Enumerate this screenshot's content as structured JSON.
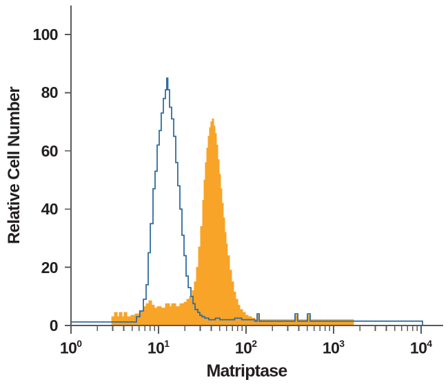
{
  "chart_data": {
    "type": "area",
    "subtype": "flow-cytometry-histogram-overlay",
    "title": "",
    "xlabel": "Matriptase",
    "ylabel": "Relative Cell Number",
    "x_axis": {
      "scale": "log10",
      "tick_base": 10,
      "tick_exponents": [
        0,
        1,
        2,
        3,
        4
      ],
      "minor_tick_multiples": [
        2,
        3,
        4,
        5,
        6,
        7,
        8,
        9
      ],
      "range_log10": [
        0,
        4.25
      ]
    },
    "y_axis": {
      "ticks": [
        0,
        20,
        40,
        60,
        80,
        100
      ],
      "range": [
        0,
        110
      ]
    },
    "grid": false,
    "legend": "none",
    "colors": {
      "filled_series": "#F7A428",
      "open_series": "#2F6C9F",
      "axis": "#58595B",
      "text": "#231F20",
      "background": "#FFFFFF"
    },
    "series": [
      {
        "name": "filled-orange-histogram",
        "style": "filled",
        "color": "#F7A428",
        "peak": {
          "x": 41,
          "height": 71
        },
        "points_log10x_height": [
          [
            0.465,
            3
          ],
          [
            0.496,
            4.5
          ],
          [
            0.528,
            3
          ],
          [
            0.551,
            4.5
          ],
          [
            0.583,
            3
          ],
          [
            0.606,
            4.5
          ],
          [
            0.638,
            3
          ],
          [
            0.685,
            3.5
          ],
          [
            0.732,
            4
          ],
          [
            0.78,
            5
          ],
          [
            0.827,
            6.5
          ],
          [
            0.858,
            7.5
          ],
          [
            0.89,
            8.5
          ],
          [
            0.921,
            7
          ],
          [
            0.953,
            6
          ],
          [
            0.984,
            6.5
          ],
          [
            1.031,
            6
          ],
          [
            1.079,
            7.5
          ],
          [
            1.126,
            6.5
          ],
          [
            1.15,
            7.5
          ],
          [
            1.197,
            6.5
          ],
          [
            1.244,
            7.5
          ],
          [
            1.291,
            8
          ],
          [
            1.323,
            9
          ],
          [
            1.354,
            10
          ],
          [
            1.386,
            12
          ],
          [
            1.409,
            15
          ],
          [
            1.433,
            20
          ],
          [
            1.457,
            27
          ],
          [
            1.48,
            34
          ],
          [
            1.504,
            43
          ],
          [
            1.52,
            50
          ],
          [
            1.535,
            56
          ],
          [
            1.551,
            61
          ],
          [
            1.567,
            65
          ],
          [
            1.583,
            68
          ],
          [
            1.598,
            70
          ],
          [
            1.614,
            71
          ],
          [
            1.63,
            68.5
          ],
          [
            1.646,
            66
          ],
          [
            1.661,
            62
          ],
          [
            1.677,
            57
          ],
          [
            1.693,
            52
          ],
          [
            1.709,
            47
          ],
          [
            1.724,
            42
          ],
          [
            1.74,
            37
          ],
          [
            1.756,
            32
          ],
          [
            1.772,
            28
          ],
          [
            1.787,
            24
          ],
          [
            1.811,
            19
          ],
          [
            1.835,
            15
          ],
          [
            1.858,
            11.5
          ],
          [
            1.882,
            9
          ],
          [
            1.906,
            7
          ],
          [
            1.929,
            5.5
          ],
          [
            1.961,
            4.5
          ],
          [
            1.992,
            3.5
          ],
          [
            2.024,
            3
          ],
          [
            2.063,
            2.5
          ],
          [
            2.102,
            2
          ],
          [
            2.126,
            3.5
          ],
          [
            2.15,
            2
          ],
          [
            2.559,
            3.5
          ],
          [
            2.591,
            2
          ],
          [
            2.701,
            3.5
          ],
          [
            2.732,
            2
          ],
          [
            3.228,
            0
          ]
        ]
      },
      {
        "name": "open-blue-histogram",
        "style": "line",
        "color": "#2F6C9F",
        "peak": {
          "x": 12,
          "height": 85
        },
        "points_log10x_height": [
          [
            0.0,
            1.2
          ],
          [
            0.748,
            3
          ],
          [
            0.787,
            5
          ],
          [
            0.827,
            9
          ],
          [
            0.858,
            14
          ],
          [
            0.882,
            25
          ],
          [
            0.906,
            35
          ],
          [
            0.937,
            47
          ],
          [
            0.961,
            53
          ],
          [
            0.984,
            62
          ],
          [
            1.008,
            67
          ],
          [
            1.031,
            73
          ],
          [
            1.055,
            78
          ],
          [
            1.079,
            81
          ],
          [
            1.094,
            85
          ],
          [
            1.106,
            81
          ],
          [
            1.126,
            75
          ],
          [
            1.15,
            71
          ],
          [
            1.173,
            65
          ],
          [
            1.197,
            56
          ],
          [
            1.22,
            48
          ],
          [
            1.244,
            40
          ],
          [
            1.268,
            31
          ],
          [
            1.291,
            24
          ],
          [
            1.315,
            17
          ],
          [
            1.339,
            13
          ],
          [
            1.37,
            10
          ],
          [
            1.394,
            7.5
          ],
          [
            1.417,
            5.5
          ],
          [
            1.449,
            4.5
          ],
          [
            1.472,
            3.5
          ],
          [
            1.496,
            3
          ],
          [
            1.528,
            2.5
          ],
          [
            1.575,
            2
          ],
          [
            1.65,
            2.5
          ],
          [
            1.7,
            2
          ],
          [
            1.87,
            2.5
          ],
          [
            1.95,
            2
          ],
          [
            2.1,
            1.5
          ],
          [
            2.126,
            4
          ],
          [
            2.15,
            1.5
          ],
          [
            2.559,
            4
          ],
          [
            2.591,
            1.5
          ],
          [
            2.701,
            4
          ],
          [
            2.732,
            1.5
          ],
          [
            3.992,
            1.5
          ],
          [
            4.016,
            0
          ]
        ]
      }
    ]
  }
}
